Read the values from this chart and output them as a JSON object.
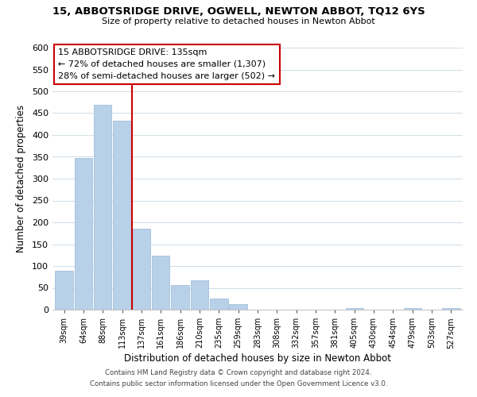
{
  "title": "15, ABBOTSRIDGE DRIVE, OGWELL, NEWTON ABBOT, TQ12 6YS",
  "subtitle": "Size of property relative to detached houses in Newton Abbot",
  "xlabel": "Distribution of detached houses by size in Newton Abbot",
  "ylabel": "Number of detached properties",
  "bar_color": "#b8d0e8",
  "bar_edge_color": "#9ab8d8",
  "grid_color": "#d0dde8",
  "vline_color": "#cc0000",
  "annotation_title": "15 ABBOTSRIDGE DRIVE: 135sqm",
  "annotation_line1": "← 72% of detached houses are smaller (1,307)",
  "annotation_line2": "28% of semi-detached houses are larger (502) →",
  "annotation_border_color": "#cc0000",
  "bin_labels": [
    "39sqm",
    "64sqm",
    "88sqm",
    "113sqm",
    "137sqm",
    "161sqm",
    "186sqm",
    "210sqm",
    "235sqm",
    "259sqm",
    "283sqm",
    "308sqm",
    "332sqm",
    "357sqm",
    "381sqm",
    "405sqm",
    "430sqm",
    "454sqm",
    "479sqm",
    "503sqm",
    "527sqm"
  ],
  "bar_heights": [
    90,
    348,
    470,
    432,
    185,
    123,
    57,
    67,
    25,
    12,
    0,
    0,
    0,
    0,
    0,
    3,
    0,
    0,
    3,
    0,
    3
  ],
  "ylim": [
    0,
    600
  ],
  "yticks": [
    0,
    50,
    100,
    150,
    200,
    250,
    300,
    350,
    400,
    450,
    500,
    550,
    600
  ],
  "footer_line1": "Contains HM Land Registry data © Crown copyright and database right 2024.",
  "footer_line2": "Contains public sector information licensed under the Open Government Licence v3.0.",
  "background_color": "#ffffff"
}
